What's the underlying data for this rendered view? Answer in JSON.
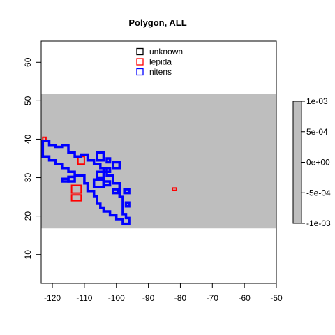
{
  "chart_data": {
    "type": "map",
    "title": "Polygon, ALL",
    "xlabel": "",
    "ylabel": "",
    "xlim": [
      -123.5,
      -50
    ],
    "ylim": [
      2.5,
      65.5
    ],
    "x_ticks": [
      -120,
      -110,
      -100,
      -90,
      -80,
      -70,
      -60,
      -50
    ],
    "y_ticks": [
      10,
      20,
      30,
      40,
      50,
      60
    ],
    "band": {
      "y_from": 16.8,
      "y_to": 51.7,
      "color": "#bebebe"
    },
    "legend": {
      "position": "top-center",
      "entries": [
        {
          "label": "unknown",
          "color": "#000000"
        },
        {
          "label": "lepida",
          "color": "#ff0000"
        },
        {
          "label": "nitens",
          "color": "#0000ff"
        }
      ]
    },
    "colorbar": {
      "labels": [
        "1e-03",
        "5e-04",
        "0e+00",
        "-5e-04",
        "-1e-03"
      ],
      "values": [
        0.001,
        0.0005,
        0,
        -0.0005,
        -0.001
      ],
      "color": "#bebebe"
    },
    "series": [
      {
        "name": "lepida",
        "color": "#ff0000",
        "polygons": [
          [
            [
              -123,
              40.5
            ],
            [
              -122,
              40.5
            ],
            [
              -122,
              39.5
            ],
            [
              -123,
              39.5
            ]
          ],
          [
            [
              -112,
              35.5
            ],
            [
              -110,
              35.5
            ],
            [
              -110,
              33.5
            ],
            [
              -112,
              33.5
            ]
          ],
          [
            [
              -114,
              28
            ],
            [
              -111,
              28
            ],
            [
              -111,
              26
            ],
            [
              -114,
              26
            ]
          ],
          [
            [
              -114,
              25.5
            ],
            [
              -111,
              25.5
            ],
            [
              -111,
              24
            ],
            [
              -114,
              24
            ]
          ],
          [
            [
              -82.5,
              27.3
            ],
            [
              -81.2,
              27.3
            ],
            [
              -81.2,
              26.7
            ],
            [
              -82.5,
              26.7
            ]
          ]
        ]
      },
      {
        "name": "nitens",
        "color": "#0000ff",
        "polygons": [
          [
            [
              -123,
              39.5
            ],
            [
              -121,
              39.5
            ],
            [
              -121,
              38.5
            ],
            [
              -119,
              38.5
            ],
            [
              -119,
              38
            ],
            [
              -117,
              38
            ],
            [
              -117,
              38.5
            ],
            [
              -115,
              38.5
            ],
            [
              -115,
              36.5
            ],
            [
              -113,
              36.5
            ],
            [
              -113,
              35.5
            ],
            [
              -111,
              35.5
            ],
            [
              -111,
              36
            ],
            [
              -109,
              36
            ],
            [
              -109,
              34.5
            ],
            [
              -107,
              34.5
            ],
            [
              -107,
              33.5
            ],
            [
              -105,
              33.5
            ],
            [
              -105,
              32.5
            ],
            [
              -103,
              32.5
            ],
            [
              -103,
              30.5
            ],
            [
              -101,
              30.5
            ],
            [
              -101,
              28.5
            ],
            [
              -99,
              28.5
            ],
            [
              -99,
              25
            ],
            [
              -98,
              25
            ],
            [
              -98,
              20.5
            ],
            [
              -97,
              20.5
            ],
            [
              -97,
              19.5
            ],
            [
              -96,
              19.5
            ],
            [
              -96,
              18
            ],
            [
              -98,
              18
            ],
            [
              -98,
              19.2
            ],
            [
              -100,
              19.2
            ],
            [
              -100,
              20.2
            ],
            [
              -102,
              20.2
            ],
            [
              -102,
              21.2
            ],
            [
              -104,
              21.2
            ],
            [
              -104,
              22.2
            ],
            [
              -105,
              22.2
            ],
            [
              -105,
              23.2
            ],
            [
              -106,
              23.2
            ],
            [
              -106,
              25.2
            ],
            [
              -107,
              25.2
            ],
            [
              -107,
              26.5
            ],
            [
              -109,
              26.5
            ],
            [
              -109,
              28.5
            ],
            [
              -110,
              28.5
            ],
            [
              -110,
              30.5
            ],
            [
              -113,
              30.5
            ],
            [
              -113,
              31.5
            ],
            [
              -115,
              31.5
            ],
            [
              -115,
              32.5
            ],
            [
              -117,
              32.5
            ],
            [
              -117,
              33.5
            ],
            [
              -119,
              33.5
            ],
            [
              -119,
              34.5
            ],
            [
              -121,
              34.5
            ],
            [
              -121,
              35.5
            ],
            [
              -123,
              35.5
            ]
          ],
          [
            [
              -115,
              30.2
            ],
            [
              -113,
              30.2
            ],
            [
              -113,
              29
            ],
            [
              -115,
              29
            ]
          ],
          [
            [
              -117,
              29.7
            ],
            [
              -115,
              29.7
            ],
            [
              -115,
              29
            ],
            [
              -117,
              29
            ]
          ],
          [
            [
              -106,
              36.5
            ],
            [
              -104,
              36.5
            ],
            [
              -104,
              34.5
            ],
            [
              -106,
              34.5
            ]
          ],
          [
            [
              -103,
              35
            ],
            [
              -102,
              35
            ],
            [
              -102,
              34
            ],
            [
              -103,
              34
            ]
          ],
          [
            [
              -101,
              34
            ],
            [
              -99,
              34
            ],
            [
              -99,
              32.5
            ],
            [
              -101,
              32.5
            ]
          ],
          [
            [
              -104,
              32.5
            ],
            [
              -102,
              32.5
            ],
            [
              -102,
              31.5
            ],
            [
              -104,
              31.5
            ]
          ],
          [
            [
              -106,
              31.5
            ],
            [
              -104,
              31.5
            ],
            [
              -104,
              30
            ],
            [
              -106,
              30
            ]
          ],
          [
            [
              -107,
              29.5
            ],
            [
              -104,
              29.5
            ],
            [
              -104,
              27.5
            ],
            [
              -107,
              27.5
            ]
          ],
          [
            [
              -104,
              29
            ],
            [
              -102,
              29
            ],
            [
              -102,
              28
            ],
            [
              -104,
              28
            ]
          ],
          [
            [
              -101,
              27
            ],
            [
              -99.5,
              27
            ],
            [
              -99.5,
              26
            ],
            [
              -101,
              26
            ]
          ],
          [
            [
              -97.5,
              27
            ],
            [
              -96,
              27
            ],
            [
              -96,
              26
            ],
            [
              -97.5,
              26
            ]
          ],
          [
            [
              -97,
              23.5
            ],
            [
              -96,
              23.5
            ],
            [
              -96,
              22.5
            ],
            [
              -97,
              22.5
            ]
          ]
        ]
      }
    ]
  }
}
